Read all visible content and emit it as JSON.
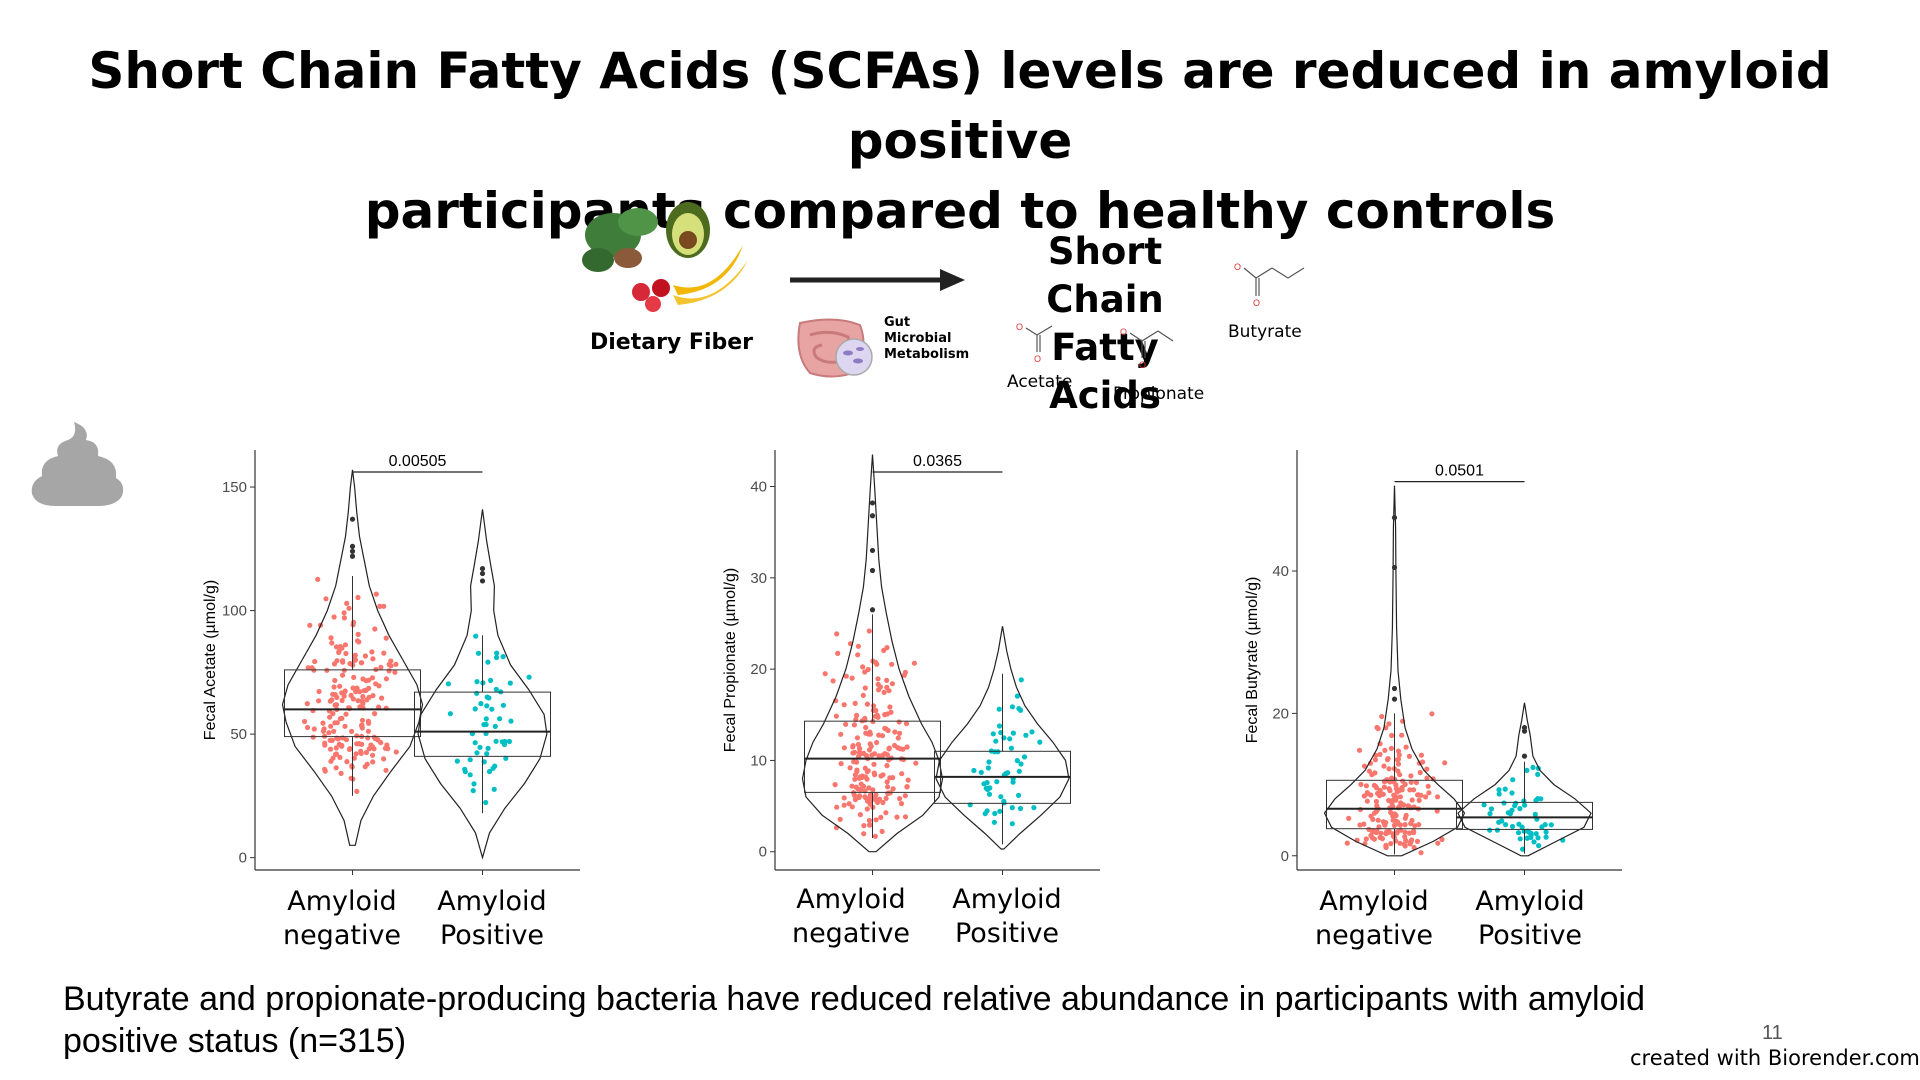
{
  "slide": {
    "title_line1": "Short Chain Fatty Acids (SCFAs) levels are reduced in amyloid positive",
    "title_line2": "participants compared to healthy controls",
    "footnote_line1": "Butyrate and propionate-producing bacteria have reduced relative abundance in participants with amyloid",
    "footnote_line2": "positive status (n=315)",
    "page_number": "11",
    "credit": "created with Biorender.com"
  },
  "schematic": {
    "dietary_fiber": "Dietary Fiber",
    "gut_line1": "Gut",
    "gut_line2": "Microbial",
    "gut_line3": "Metabolism",
    "scfa_line1": "Short Chain",
    "scfa_line2": "Fatty Acids",
    "acetate": "Acetate",
    "propionate": "Propionate",
    "butyrate": "Butyrate",
    "icons": [
      "food-icon",
      "gut-icon",
      "arrow-icon",
      "poop-icon"
    ]
  },
  "colors": {
    "negative": "#f8766d",
    "positive": "#00bfc4",
    "outlier": "#333333",
    "poop": "#a6a6a6"
  },
  "chart_data": [
    {
      "type": "violin-box",
      "ylabel": "Fecal Acetate (µmol/g)",
      "ylim": [
        -5,
        165
      ],
      "yticks": [
        0,
        50,
        100,
        150
      ],
      "categories": [
        "Amyloid\nnegative",
        "Amyloid\nPositive"
      ],
      "category_lines": [
        [
          "Amyloid",
          "negative"
        ],
        [
          "Amyloid",
          "Positive"
        ]
      ],
      "pvalue": "0.00505",
      "series": [
        {
          "group": "Amyloid negative",
          "min": 5,
          "max": 157,
          "q1": 49,
          "median": 60,
          "q3": 76,
          "whisker_low": 25,
          "whisker_high": 114,
          "outliers": [
            122,
            124,
            126,
            137
          ],
          "violin_widths": [
            [
              5,
              0.04
            ],
            [
              15,
              0.12
            ],
            [
              25,
              0.3
            ],
            [
              35,
              0.55
            ],
            [
              45,
              0.82
            ],
            [
              55,
              0.95
            ],
            [
              62,
              1.0
            ],
            [
              70,
              0.92
            ],
            [
              80,
              0.72
            ],
            [
              90,
              0.52
            ],
            [
              100,
              0.36
            ],
            [
              110,
              0.24
            ],
            [
              120,
              0.17
            ],
            [
              130,
              0.1
            ],
            [
              140,
              0.06
            ],
            [
              150,
              0.03
            ],
            [
              157,
              0.0
            ]
          ]
        },
        {
          "group": "Amyloid Positive",
          "min": 0,
          "max": 141,
          "q1": 41,
          "median": 51,
          "q3": 67,
          "whisker_low": 18,
          "whisker_high": 90,
          "outliers": [
            112,
            115,
            117
          ],
          "violin_widths": [
            [
              0,
              0.0
            ],
            [
              10,
              0.1
            ],
            [
              20,
              0.32
            ],
            [
              30,
              0.6
            ],
            [
              40,
              0.82
            ],
            [
              50,
              0.92
            ],
            [
              58,
              0.88
            ],
            [
              68,
              0.66
            ],
            [
              78,
              0.4
            ],
            [
              90,
              0.22
            ],
            [
              100,
              0.16
            ],
            [
              110,
              0.17
            ],
            [
              118,
              0.12
            ],
            [
              128,
              0.06
            ],
            [
              141,
              0.0
            ]
          ]
        }
      ]
    },
    {
      "type": "violin-box",
      "ylabel": "Fecal Propionate (µmol/g)",
      "ylim": [
        -2,
        44
      ],
      "yticks": [
        0,
        10,
        20,
        30,
        40
      ],
      "categories": [
        "Amyloid\nnegative",
        "Amyloid\nPositive"
      ],
      "category_lines": [
        [
          "Amyloid",
          "negative"
        ],
        [
          "Amyloid",
          "Positive"
        ]
      ],
      "pvalue": "0.0365",
      "series": [
        {
          "group": "Amyloid negative",
          "min": 0,
          "max": 43.5,
          "q1": 6.5,
          "median": 10.2,
          "q3": 14.3,
          "whisker_low": 1.5,
          "whisker_high": 26,
          "outliers": [
            26.5,
            30.8,
            33,
            36.8,
            38.2
          ],
          "violin_widths": [
            [
              0,
              0.05
            ],
            [
              2,
              0.35
            ],
            [
              4,
              0.72
            ],
            [
              6,
              0.95
            ],
            [
              8,
              1.0
            ],
            [
              10,
              0.95
            ],
            [
              12,
              0.85
            ],
            [
              14,
              0.7
            ],
            [
              17,
              0.52
            ],
            [
              20,
              0.38
            ],
            [
              23,
              0.28
            ],
            [
              26,
              0.2
            ],
            [
              29,
              0.13
            ],
            [
              32,
              0.09
            ],
            [
              36,
              0.06
            ],
            [
              40,
              0.03
            ],
            [
              43.5,
              0.0
            ]
          ]
        },
        {
          "group": "Amyloid Positive",
          "min": 0.3,
          "max": 24.7,
          "q1": 5.3,
          "median": 8.2,
          "q3": 11.0,
          "whisker_low": 0.8,
          "whisker_high": 19.5,
          "outliers": [],
          "violin_widths": [
            [
              0.3,
              0.02
            ],
            [
              2,
              0.25
            ],
            [
              4,
              0.55
            ],
            [
              6,
              0.82
            ],
            [
              8,
              0.95
            ],
            [
              10,
              0.9
            ],
            [
              12,
              0.72
            ],
            [
              14,
              0.5
            ],
            [
              16,
              0.32
            ],
            [
              18,
              0.2
            ],
            [
              20,
              0.12
            ],
            [
              22,
              0.06
            ],
            [
              24.7,
              0.0
            ]
          ]
        }
      ]
    },
    {
      "type": "violin-box",
      "ylabel": "Fecal Butyrate (µmol/g)",
      "ylim": [
        -2,
        57
      ],
      "yticks": [
        0,
        20,
        40
      ],
      "categories": [
        "Amyloid\nnegative",
        "Amyloid\nPositive"
      ],
      "category_lines": [
        [
          "Amyloid",
          "negative"
        ],
        [
          "Amyloid",
          "Positive"
        ]
      ],
      "pvalue": "0.0501",
      "series": [
        {
          "group": "Amyloid negative",
          "min": 0,
          "max": 52,
          "q1": 3.8,
          "median": 6.6,
          "q3": 10.6,
          "whisker_low": 0.2,
          "whisker_high": 20,
          "outliers": [
            22,
            23.5,
            40.5,
            47.5
          ],
          "violin_widths": [
            [
              0,
              0.1
            ],
            [
              2,
              0.55
            ],
            [
              4,
              0.9
            ],
            [
              6,
              1.0
            ],
            [
              8,
              0.85
            ],
            [
              10,
              0.62
            ],
            [
              12,
              0.42
            ],
            [
              15,
              0.25
            ],
            [
              18,
              0.15
            ],
            [
              22,
              0.09
            ],
            [
              26,
              0.05
            ],
            [
              32,
              0.03
            ],
            [
              40,
              0.02
            ],
            [
              46,
              0.015
            ],
            [
              52,
              0.0
            ]
          ]
        },
        {
          "group": "Amyloid Positive",
          "min": 0,
          "max": 21.5,
          "q1": 3.7,
          "median": 5.4,
          "q3": 7.5,
          "whisker_low": 0.3,
          "whisker_high": 13.2,
          "outliers": [
            14,
            17.5,
            18
          ],
          "violin_widths": [
            [
              0,
              0.05
            ],
            [
              2,
              0.45
            ],
            [
              4,
              0.85
            ],
            [
              6,
              0.95
            ],
            [
              8,
              0.72
            ],
            [
              10,
              0.42
            ],
            [
              12,
              0.22
            ],
            [
              14,
              0.12
            ],
            [
              17,
              0.08
            ],
            [
              19,
              0.04
            ],
            [
              21.5,
              0.0
            ]
          ]
        }
      ]
    }
  ]
}
